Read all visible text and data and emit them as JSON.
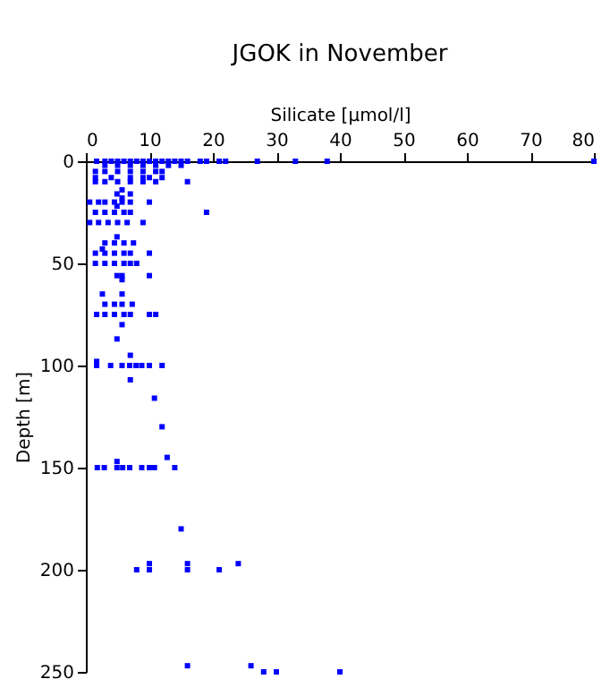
{
  "chart_data": {
    "type": "scatter",
    "title": "JGOK in November",
    "xlabel": "Silicate [µmol/l]",
    "ylabel": "Depth [m]",
    "xlim": [
      0,
      80
    ],
    "xticks": [
      0,
      10,
      20,
      30,
      40,
      50,
      60,
      70,
      80
    ],
    "ylim": [
      250,
      0
    ],
    "yticks": [
      0,
      50,
      100,
      150,
      200,
      250
    ],
    "grid": false,
    "legend": false,
    "marker": "square",
    "series": [
      {
        "color": "#0000ff",
        "x": [
          1.7,
          3,
          4,
          5,
          6,
          7,
          8,
          9,
          10,
          11,
          12,
          13,
          14,
          15,
          16,
          18,
          19,
          21,
          22,
          27,
          33,
          38,
          80,
          3,
          5,
          7,
          9,
          11,
          13,
          15,
          1.5,
          3,
          5,
          7,
          9,
          11,
          12,
          1.5,
          4,
          7,
          9,
          10,
          12,
          1.5,
          3,
          5,
          7,
          9,
          11,
          16,
          5.7,
          4.9,
          7,
          5.7,
          0.6,
          2,
          3,
          4.5,
          5.7,
          7,
          10,
          4.9,
          1.5,
          3,
          4.5,
          6,
          7,
          19,
          0.6,
          2,
          3.5,
          5,
          6.5,
          9,
          4.9,
          3,
          4.5,
          6,
          7.5,
          2.6,
          1.5,
          3,
          4.5,
          6,
          7,
          10,
          1.5,
          3,
          4.5,
          6,
          7,
          8,
          4.9,
          5.7,
          10,
          5.7,
          2.6,
          5.7,
          3,
          4.5,
          5.7,
          7.3,
          1.7,
          3,
          4.5,
          6,
          7,
          10,
          11,
          5.7,
          4.9,
          7,
          1.7,
          1.7,
          3.9,
          5.7,
          6.9,
          7.9,
          8.8,
          10,
          12,
          7,
          10.8,
          12,
          12.8,
          4.9,
          1.8,
          2.9,
          4.9,
          5.8,
          6.9,
          8.8,
          10,
          10.8,
          14,
          15,
          10,
          16,
          24,
          8,
          10,
          16,
          21,
          16,
          26,
          28,
          30,
          40
        ],
        "values": [
          0,
          0,
          0,
          0,
          0,
          0,
          0,
          0,
          0,
          0,
          0,
          0,
          0,
          0,
          0,
          0,
          0,
          0,
          0,
          0,
          0,
          0,
          0,
          2,
          2,
          2,
          2,
          2,
          2,
          2,
          5,
          5,
          5,
          5,
          5,
          5,
          5,
          8,
          8,
          8,
          8,
          8,
          8,
          10,
          10,
          10,
          10,
          10,
          10,
          10,
          14,
          16,
          16,
          18,
          20,
          20,
          20,
          20,
          20,
          20,
          20,
          22,
          25,
          25,
          25,
          25,
          25,
          25,
          30,
          30,
          30,
          30,
          30,
          30,
          37,
          40,
          40,
          40,
          40,
          43,
          45,
          45,
          45,
          45,
          45,
          45,
          50,
          50,
          50,
          50,
          50,
          50,
          56,
          56,
          56,
          58,
          65,
          65,
          70,
          70,
          70,
          70,
          75,
          75,
          75,
          75,
          75,
          75,
          75,
          80,
          87,
          95,
          98,
          100,
          100,
          100,
          100,
          100,
          100,
          100,
          100,
          107,
          116,
          130,
          145,
          147,
          150,
          150,
          150,
          150,
          150,
          150,
          150,
          150,
          150,
          180,
          197,
          197,
          197,
          200,
          200,
          200,
          200,
          247,
          247,
          250,
          250,
          250
        ]
      }
    ]
  }
}
